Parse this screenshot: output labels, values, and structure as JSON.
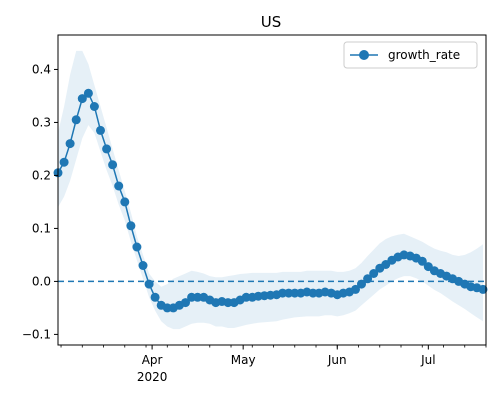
{
  "chart_data": {
    "type": "line",
    "title": "US",
    "xlabel": "",
    "ylabel": "",
    "x_start": "2020-03-01",
    "x_end": "2020-07-20",
    "ylim": [
      -0.12,
      0.465
    ],
    "y_ticks": [
      {
        "value": -0.1,
        "label": "−0.1"
      },
      {
        "value": 0.0,
        "label": "0.0"
      },
      {
        "value": 0.1,
        "label": "0.1"
      },
      {
        "value": 0.2,
        "label": "0.2"
      },
      {
        "value": 0.3,
        "label": "0.3"
      },
      {
        "value": 0.4,
        "label": "0.4"
      }
    ],
    "x_ticks": [
      {
        "date": "2020-04-01",
        "label": "Apr",
        "sublabel": "2020"
      },
      {
        "date": "2020-05-01",
        "label": "May"
      },
      {
        "date": "2020-06-01",
        "label": "Jun"
      },
      {
        "date": "2020-07-01",
        "label": "Jul"
      }
    ],
    "reference_line": {
      "y": 0.0,
      "style": "dashed"
    },
    "grid": false,
    "legend": {
      "placement": "top-right",
      "entries": [
        "growth_rate"
      ]
    },
    "colors": {
      "series": "#1f77b4",
      "band": "#1f77b4"
    },
    "series": [
      {
        "name": "growth_rate",
        "marker": "circle",
        "x": [
          "2020-03-01",
          "2020-03-03",
          "2020-03-05",
          "2020-03-07",
          "2020-03-09",
          "2020-03-11",
          "2020-03-13",
          "2020-03-15",
          "2020-03-17",
          "2020-03-19",
          "2020-03-21",
          "2020-03-23",
          "2020-03-25",
          "2020-03-27",
          "2020-03-29",
          "2020-03-31",
          "2020-04-02",
          "2020-04-04",
          "2020-04-06",
          "2020-04-08",
          "2020-04-10",
          "2020-04-12",
          "2020-04-14",
          "2020-04-16",
          "2020-04-18",
          "2020-04-20",
          "2020-04-22",
          "2020-04-24",
          "2020-04-26",
          "2020-04-28",
          "2020-04-30",
          "2020-05-02",
          "2020-05-04",
          "2020-05-06",
          "2020-05-08",
          "2020-05-10",
          "2020-05-12",
          "2020-05-14",
          "2020-05-16",
          "2020-05-18",
          "2020-05-20",
          "2020-05-22",
          "2020-05-24",
          "2020-05-26",
          "2020-05-28",
          "2020-05-30",
          "2020-06-01",
          "2020-06-03",
          "2020-06-05",
          "2020-06-07",
          "2020-06-09",
          "2020-06-11",
          "2020-06-13",
          "2020-06-15",
          "2020-06-17",
          "2020-06-19",
          "2020-06-21",
          "2020-06-23",
          "2020-06-25",
          "2020-06-27",
          "2020-06-29",
          "2020-07-01",
          "2020-07-03",
          "2020-07-05",
          "2020-07-07",
          "2020-07-09",
          "2020-07-11",
          "2020-07-13",
          "2020-07-15",
          "2020-07-17",
          "2020-07-19"
        ],
        "values": [
          0.205,
          0.225,
          0.26,
          0.305,
          0.345,
          0.355,
          0.33,
          0.285,
          0.25,
          0.22,
          0.18,
          0.15,
          0.105,
          0.065,
          0.03,
          -0.005,
          -0.03,
          -0.045,
          -0.05,
          -0.05,
          -0.045,
          -0.04,
          -0.03,
          -0.03,
          -0.03,
          -0.035,
          -0.04,
          -0.038,
          -0.04,
          -0.04,
          -0.035,
          -0.03,
          -0.03,
          -0.028,
          -0.027,
          -0.026,
          -0.025,
          -0.022,
          -0.022,
          -0.022,
          -0.022,
          -0.02,
          -0.022,
          -0.022,
          -0.02,
          -0.022,
          -0.025,
          -0.022,
          -0.02,
          -0.015,
          -0.005,
          0.005,
          0.015,
          0.025,
          0.032,
          0.04,
          0.046,
          0.05,
          0.048,
          0.044,
          0.038,
          0.028,
          0.02,
          0.015,
          0.01,
          0.005,
          0.0,
          -0.005,
          -0.01,
          -0.012,
          -0.015
        ],
        "band_upper": [
          0.28,
          0.33,
          0.39,
          0.435,
          0.435,
          0.41,
          0.37,
          0.33,
          0.29,
          0.25,
          0.21,
          0.17,
          0.13,
          0.085,
          0.05,
          0.015,
          0.0,
          -0.01,
          -0.005,
          0.005,
          0.01,
          0.015,
          0.02,
          0.018,
          0.015,
          0.01,
          0.008,
          0.008,
          0.01,
          0.012,
          0.014,
          0.015,
          0.016,
          0.016,
          0.016,
          0.016,
          0.016,
          0.018,
          0.018,
          0.018,
          0.018,
          0.02,
          0.02,
          0.02,
          0.02,
          0.02,
          0.018,
          0.018,
          0.02,
          0.025,
          0.035,
          0.048,
          0.06,
          0.072,
          0.08,
          0.085,
          0.088,
          0.09,
          0.085,
          0.08,
          0.075,
          0.068,
          0.062,
          0.058,
          0.055,
          0.05,
          0.048,
          0.05,
          0.055,
          0.062,
          0.07
        ],
        "band_lower": [
          0.14,
          0.16,
          0.19,
          0.23,
          0.27,
          0.295,
          0.28,
          0.245,
          0.21,
          0.18,
          0.145,
          0.115,
          0.075,
          0.04,
          0.005,
          -0.03,
          -0.055,
          -0.075,
          -0.085,
          -0.09,
          -0.09,
          -0.085,
          -0.08,
          -0.078,
          -0.078,
          -0.08,
          -0.085,
          -0.085,
          -0.088,
          -0.088,
          -0.085,
          -0.082,
          -0.08,
          -0.078,
          -0.077,
          -0.076,
          -0.075,
          -0.072,
          -0.07,
          -0.068,
          -0.067,
          -0.066,
          -0.066,
          -0.066,
          -0.064,
          -0.064,
          -0.066,
          -0.064,
          -0.06,
          -0.055,
          -0.045,
          -0.035,
          -0.025,
          -0.015,
          -0.008,
          0.0,
          0.006,
          0.01,
          0.01,
          0.006,
          0.0,
          -0.008,
          -0.016,
          -0.022,
          -0.03,
          -0.038,
          -0.045,
          -0.052,
          -0.06,
          -0.068,
          -0.075
        ]
      }
    ]
  }
}
